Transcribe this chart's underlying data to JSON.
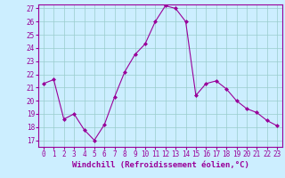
{
  "x": [
    0,
    1,
    2,
    3,
    4,
    5,
    6,
    7,
    8,
    9,
    10,
    11,
    12,
    13,
    14,
    15,
    16,
    17,
    18,
    19,
    20,
    21,
    22,
    23
  ],
  "y": [
    21.3,
    21.6,
    18.6,
    19.0,
    17.8,
    17.0,
    18.2,
    20.3,
    22.2,
    23.5,
    24.3,
    26.0,
    27.2,
    27.0,
    26.0,
    20.4,
    21.3,
    21.5,
    20.9,
    20.0,
    19.4,
    19.1,
    18.5,
    18.1
  ],
  "line_color": "#990099",
  "marker": "D",
  "marker_size": 2.0,
  "bg_color": "#cceeff",
  "grid_color": "#99cccc",
  "xlabel": "Windchill (Refroidissement éolien,°C)",
  "xlabel_color": "#990099",
  "tick_color": "#990099",
  "spine_color": "#990099",
  "ylim_min": 16.5,
  "ylim_max": 27.3,
  "xlim_min": -0.5,
  "xlim_max": 23.5,
  "yticks": [
    17,
    18,
    19,
    20,
    21,
    22,
    23,
    24,
    25,
    26,
    27
  ],
  "xticks": [
    0,
    1,
    2,
    3,
    4,
    5,
    6,
    7,
    8,
    9,
    10,
    11,
    12,
    13,
    14,
    15,
    16,
    17,
    18,
    19,
    20,
    21,
    22,
    23
  ],
  "tick_fontsize": 5.5,
  "xlabel_fontsize": 6.5
}
